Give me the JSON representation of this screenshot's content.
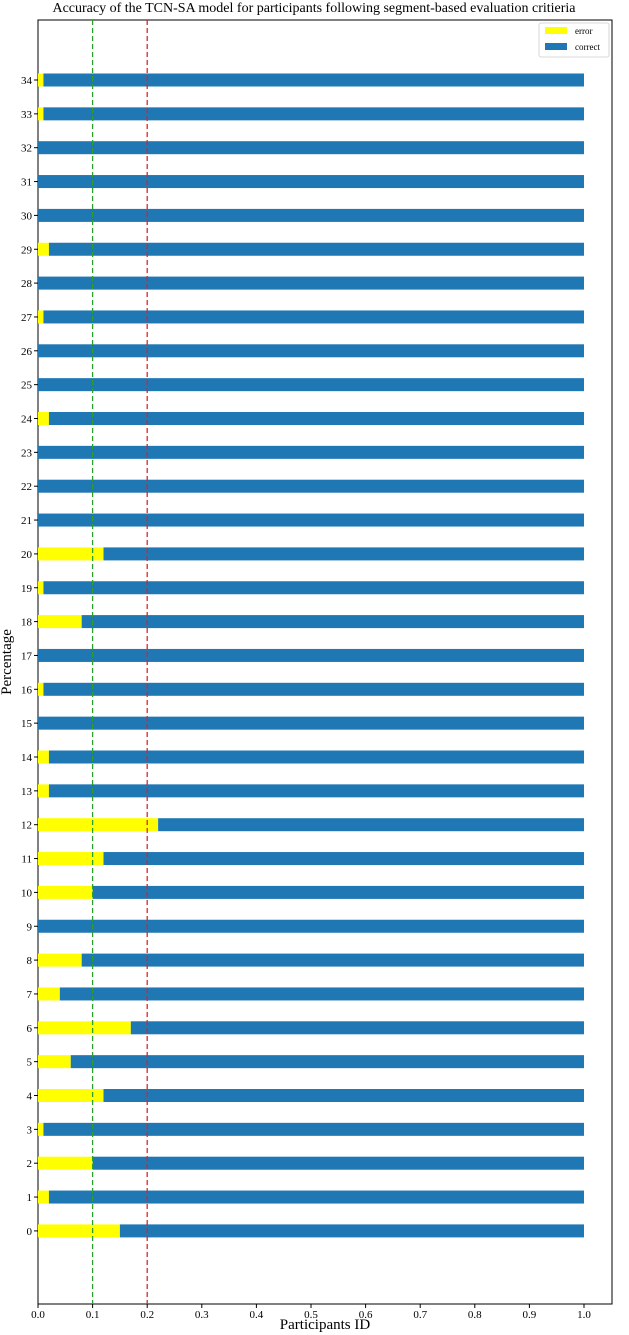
{
  "chart_data": {
    "type": "bar",
    "orientation": "horizontal",
    "stacked": true,
    "title": "Accuracy of the TCN-SA model for participants following segment-based evaluation critieria",
    "xlabel": "Participants ID",
    "ylabel": "Percentage",
    "xlim": [
      0,
      1.1
    ],
    "xticks": [
      "0.0",
      "0.1",
      "0.2",
      "0.3",
      "0.4",
      "0.5",
      "0.6",
      "0.7",
      "0.8",
      "0.9",
      "1.0"
    ],
    "categories": [
      "0",
      "1",
      "2",
      "3",
      "4",
      "5",
      "6",
      "7",
      "8",
      "9",
      "10",
      "11",
      "12",
      "13",
      "14",
      "15",
      "16",
      "17",
      "18",
      "19",
      "20",
      "21",
      "22",
      "23",
      "24",
      "25",
      "26",
      "27",
      "28",
      "29",
      "30",
      "31",
      "32",
      "33",
      "34"
    ],
    "series": [
      {
        "name": "error",
        "color": "#ffff00",
        "values": [
          0.15,
          0.02,
          0.1,
          0.01,
          0.12,
          0.06,
          0.17,
          0.04,
          0.08,
          0.0,
          0.1,
          0.12,
          0.22,
          0.02,
          0.02,
          0.0,
          0.01,
          0.0,
          0.08,
          0.01,
          0.12,
          0.0,
          0.0,
          0.0,
          0.02,
          0.0,
          0.0,
          0.01,
          0.0,
          0.02,
          0.0,
          0.0,
          0.0,
          0.01,
          0.01
        ]
      },
      {
        "name": "correct",
        "color": "#1f77b4",
        "values": [
          0.85,
          0.98,
          0.9,
          0.99,
          0.88,
          0.94,
          0.83,
          0.96,
          0.92,
          1.0,
          0.9,
          0.88,
          0.78,
          0.98,
          0.98,
          1.0,
          0.99,
          1.0,
          0.92,
          0.99,
          0.88,
          1.0,
          1.0,
          1.0,
          0.98,
          1.0,
          1.0,
          0.99,
          1.0,
          0.98,
          1.0,
          1.0,
          1.0,
          0.99,
          0.99
        ]
      }
    ],
    "reference_lines": [
      {
        "x": 0.1,
        "color": "#2ca02c",
        "style": "dashed"
      },
      {
        "x": 0.2,
        "color": "#d62728",
        "style": "dashed"
      }
    ],
    "legend": "top-right",
    "grid": false
  }
}
